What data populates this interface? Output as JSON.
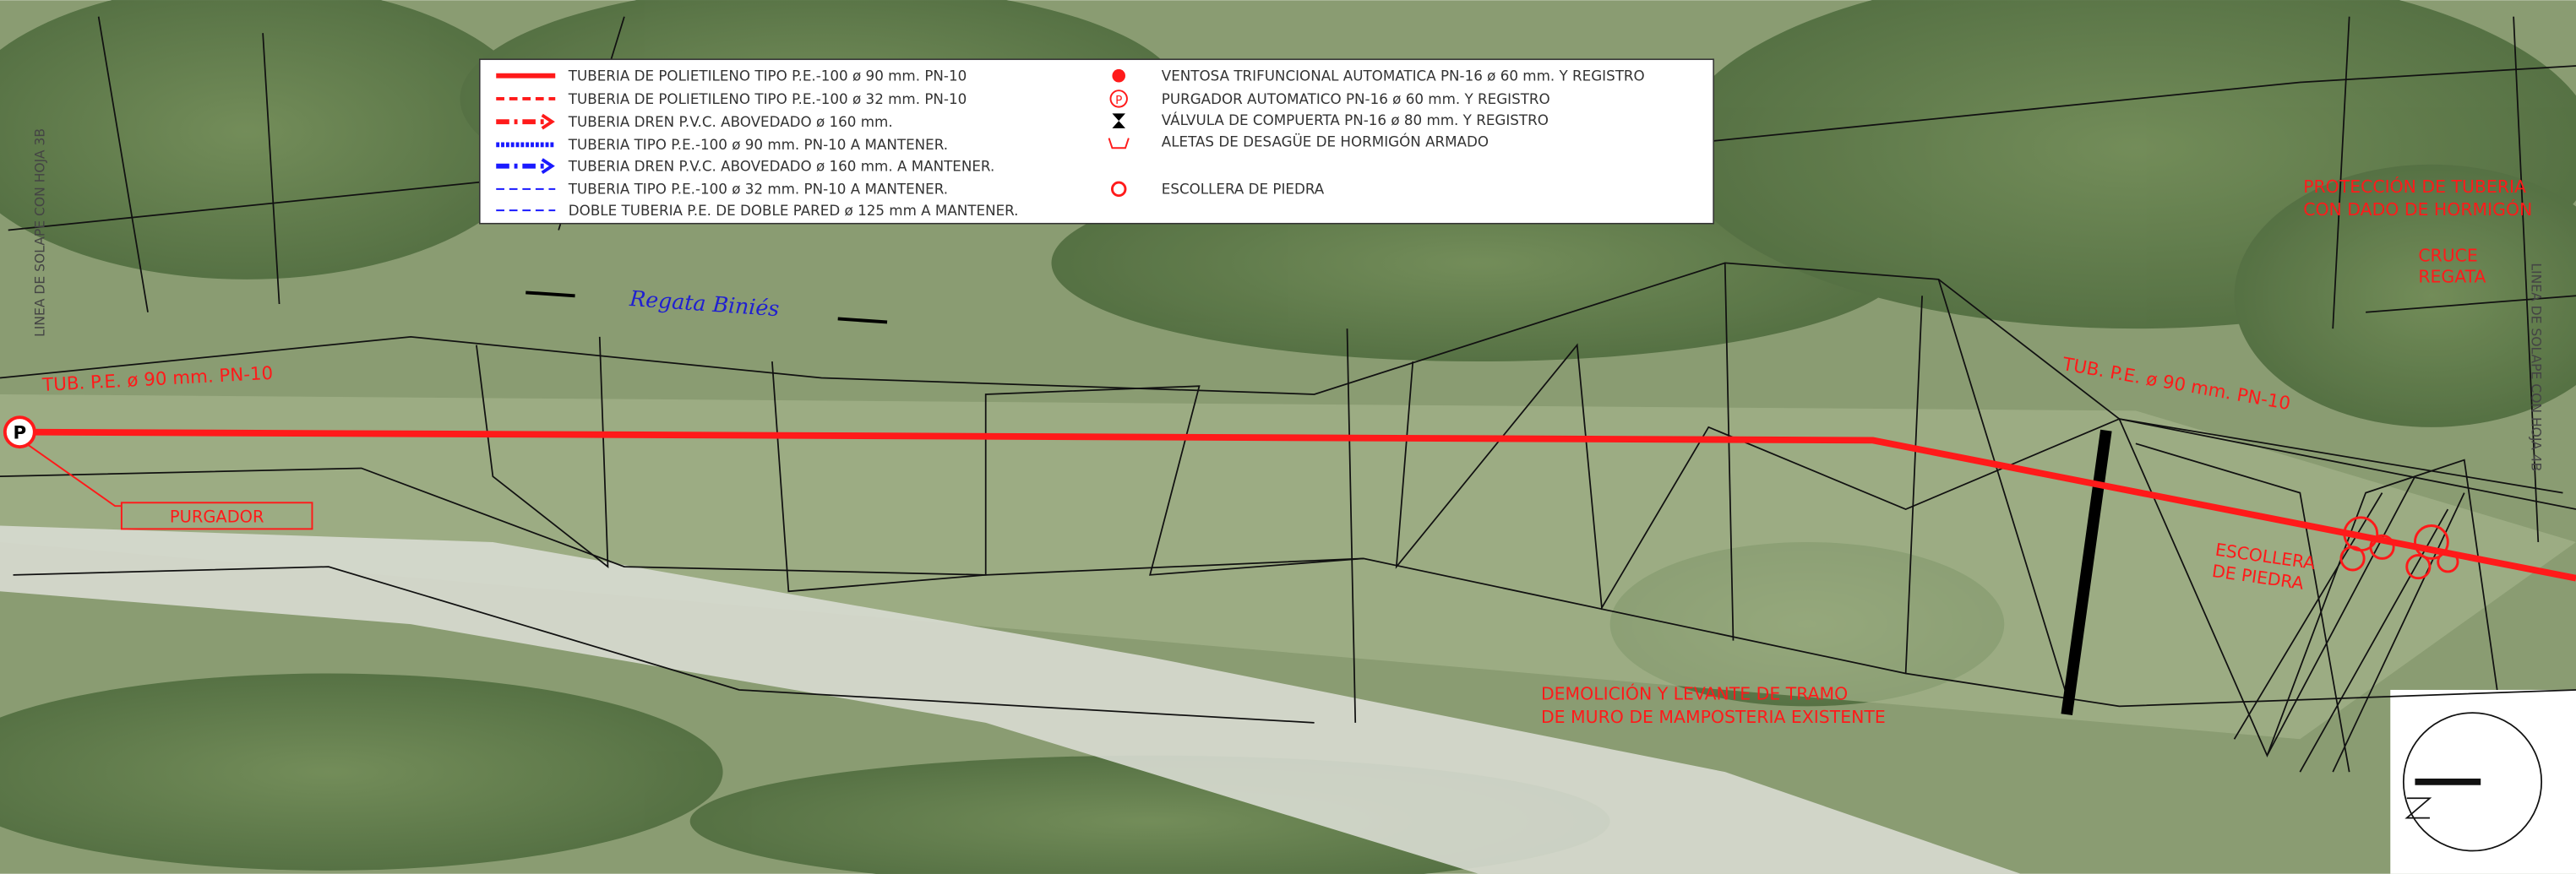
{
  "legend": {
    "left": [
      "TUBERIA DE POLIETILENO TIPO P.E.-100 ø 90 mm. PN-10",
      "TUBERIA DE POLIETILENO TIPO P.E.-100 ø 32 mm. PN-10",
      "TUBERIA DREN P.V.C. ABOVEDADO ø 160 mm.",
      "TUBERIA TIPO P.E.-100 ø 90 mm. PN-10 A MANTENER.",
      "TUBERIA DREN P.V.C. ABOVEDADO ø 160 mm. A MANTENER.",
      "TUBERIA TIPO P.E.-100 ø 32 mm. PN-10 A MANTENER.",
      "DOBLE TUBERIA P.E. DE DOBLE PARED ø 125 mm A MANTENER."
    ],
    "right": [
      "VENTOSA TRIFUNCIONAL AUTOMATICA PN-16 ø 60 mm. Y REGISTRO",
      "PURGADOR AUTOMATICO PN-16 ø 60 mm. Y REGISTRO",
      "VÁLVULA DE COMPUERTA PN-16 ø 80 mm. Y REGISTRO",
      "ALETAS DE DESAGÜE DE HORMIGÓN ARMADO",
      "ESCOLLERA DE PIEDRA"
    ],
    "purgador_symbol": "P"
  },
  "labels": {
    "pipe_left": "TUB. P.E. ø 90 mm. PN-10",
    "pipe_right": "TUB. P.E. ø 90 mm. PN-10",
    "purgador": "PURGADOR",
    "purgador_symbol": "P",
    "stream": "Regata Biniés",
    "proteccion": [
      "PROTECCIÓN DE TUBERIA",
      "CON DADO DE HORMIGÓN"
    ],
    "cruce": [
      "CRUCE",
      "REGATA"
    ],
    "escollera": [
      "ESCOLLERA",
      "DE PIEDRA"
    ],
    "demolicion": [
      "DEMOLICIÓN Y LEVANTE DE TRAMO",
      "DE MURO DE MAMPOSTERIA EXISTENTE"
    ],
    "solape_left": "LINEA DE SOLAPE CON HOJA 3B",
    "solape_right": "LINEA DE SOLAPE CON HOJA 4B"
  }
}
